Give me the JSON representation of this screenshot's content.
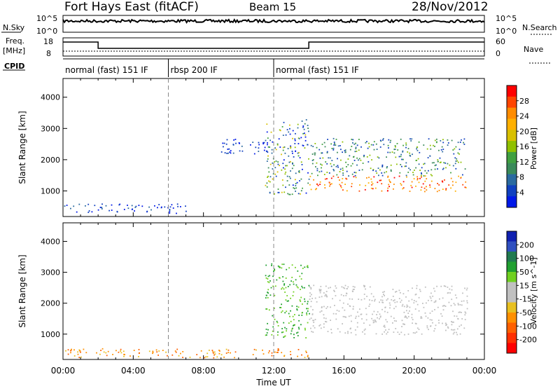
{
  "header": {
    "station": "Fort Hays East (fitACF)",
    "beam": "Beam 15",
    "date": "28/Nov/2012"
  },
  "noise_panel": {
    "left_label": "N.Sky",
    "right_label": "N.Search",
    "ticks_left": [
      "10^5",
      "10^0"
    ],
    "ticks_right": [
      "10^5",
      "10^0"
    ]
  },
  "freq_panel": {
    "left_label_1": "Freq.",
    "left_label_2": "[MHz]",
    "right_label": "Nave",
    "ticks_left": [
      "18",
      "8"
    ],
    "ticks_right": [
      "60",
      "0"
    ],
    "freq_steps": [
      {
        "start_h": 0,
        "end_h": 2,
        "value": "high"
      },
      {
        "start_h": 2,
        "end_h": 14,
        "value": "low"
      },
      {
        "start_h": 14,
        "end_h": 24,
        "value": "high"
      }
    ]
  },
  "cpid": {
    "label": "CPID",
    "segments": [
      {
        "start_h": 0,
        "end_h": 6,
        "name": "normal (fast) 151 IF"
      },
      {
        "start_h": 6,
        "end_h": 12,
        "name": "rbsp 200 IF"
      },
      {
        "start_h": 12,
        "end_h": 24,
        "name": "normal (fast) 151 IF"
      }
    ]
  },
  "power_colorbar": {
    "label": "Power [dB]",
    "ticks": [
      "28",
      "24",
      "20",
      "16",
      "12",
      "8",
      "4"
    ],
    "colors": [
      "#ff0000",
      "#ff4500",
      "#ff8c00",
      "#ffb000",
      "#d8c000",
      "#90c000",
      "#40a040",
      "#3a8a5a",
      "#2a6aa0",
      "#1040c0",
      "#0018e8"
    ]
  },
  "velocity_colorbar": {
    "label": "Velocity [m s^-1]",
    "ticks": [
      "200",
      "100",
      "50",
      "15",
      "-15",
      "-50",
      "-100",
      "-200"
    ],
    "colors": [
      "#1020b0",
      "#3050c0",
      "#207a50",
      "#20a030",
      "#70d020",
      "#c0c0c0",
      "#c0c0c0",
      "#e8c020",
      "#ff9000",
      "#ff6000",
      "#ff3000",
      "#ff0000"
    ]
  },
  "chart_data": [
    {
      "type": "heatmap",
      "panel": "power",
      "ylabel": "Slant Range [km]",
      "ylim": [
        180,
        4600
      ],
      "yticks": [
        "1000",
        "2000",
        "3000",
        "4000"
      ],
      "xlim_hours": [
        0,
        24
      ],
      "vertical_markers_h": [
        6,
        12
      ],
      "bands": [
        {
          "start_h": 9,
          "end_h": 12,
          "range_km": [
            2200,
            2700
          ],
          "level": "weak"
        },
        {
          "start_h": 11.5,
          "end_h": 14,
          "range_km": [
            900,
            3300
          ],
          "level": "descending"
        },
        {
          "start_h": 14,
          "end_h": 23,
          "range_km": [
            1000,
            1500
          ],
          "level": "strong"
        },
        {
          "start_h": 14,
          "end_h": 23,
          "range_km": [
            1500,
            2700
          ],
          "level": "moderate"
        },
        {
          "start_h": 0,
          "end_h": 7,
          "range_km": [
            300,
            600
          ],
          "level": "weak"
        }
      ]
    },
    {
      "type": "heatmap",
      "panel": "velocity",
      "ylabel": "Slant Range [km]",
      "ylim": [
        180,
        4600
      ],
      "yticks": [
        "1000",
        "2000",
        "3000",
        "4000"
      ],
      "xlim_hours": [
        0,
        24
      ],
      "vertical_markers_h": [
        6,
        12
      ],
      "bands": [
        {
          "start_h": 11.5,
          "end_h": 14,
          "range_km": [
            900,
            3300
          ],
          "velocity": "15 to 50"
        },
        {
          "start_h": 14,
          "end_h": 23,
          "range_km": [
            1000,
            2600
          ],
          "velocity": "-15 to 15"
        },
        {
          "start_h": 0,
          "end_h": 14,
          "range_km": [
            250,
            550
          ],
          "velocity": "-100 to -50"
        }
      ]
    }
  ],
  "xaxis": {
    "ticks": [
      "00:00",
      "04:00",
      "08:00",
      "12:00",
      "16:00",
      "20:00",
      "00:00"
    ],
    "label": "Time UT"
  }
}
